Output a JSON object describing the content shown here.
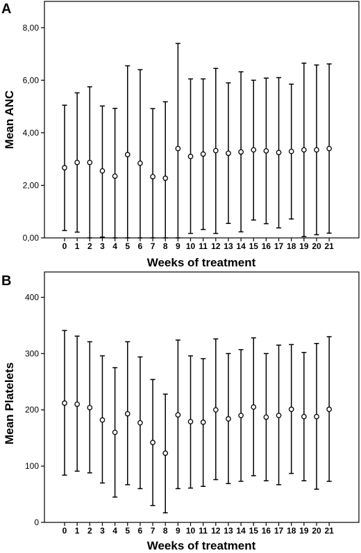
{
  "chart_data": [
    {
      "panel_label": "A",
      "type": "scatter",
      "representation": "mean with error bars",
      "xlabel": "Weeks of treatment",
      "ylabel": "Mean ANC",
      "categories": [
        "0",
        "1",
        "2",
        "3",
        "4",
        "5",
        "6",
        "7",
        "8",
        "9",
        "10",
        "11",
        "12",
        "13",
        "14",
        "15",
        "16",
        "17",
        "18",
        "19",
        "20",
        "21"
      ],
      "mean": [
        2.67,
        2.87,
        2.87,
        2.55,
        2.35,
        3.17,
        2.84,
        2.33,
        2.27,
        3.4,
        3.1,
        3.19,
        3.32,
        3.22,
        3.27,
        3.35,
        3.31,
        3.25,
        3.29,
        3.35,
        3.35,
        3.4
      ],
      "upper": [
        5.05,
        5.52,
        5.75,
        5.02,
        4.93,
        6.55,
        6.4,
        4.92,
        5.18,
        7.4,
        6.05,
        6.05,
        6.45,
        5.9,
        6.32,
        6.0,
        6.08,
        6.1,
        5.85,
        6.65,
        6.58,
        6.62
      ],
      "lower": [
        0.28,
        0.22,
        0.0,
        0.03,
        0.0,
        0.0,
        0.0,
        0.0,
        0.0,
        0.0,
        0.17,
        0.32,
        0.17,
        0.55,
        0.23,
        0.68,
        0.54,
        0.38,
        0.72,
        0.05,
        0.12,
        0.18
      ],
      "ylim": [
        0,
        9
      ],
      "yticks": [
        "0,00",
        "2,00",
        "4,00",
        "6,00",
        "8,00"
      ],
      "ytick_values": [
        0,
        2,
        4,
        6,
        8
      ],
      "grid": false
    },
    {
      "panel_label": "B",
      "type": "scatter",
      "representation": "mean with error bars",
      "xlabel": "Weeks of treatment",
      "ylabel": "Mean Platelets",
      "categories": [
        "0",
        "1",
        "2",
        "3",
        "4",
        "5",
        "6",
        "7",
        "8",
        "9",
        "10",
        "11",
        "12",
        "13",
        "14",
        "15",
        "16",
        "17",
        "18",
        "19",
        "20",
        "21"
      ],
      "mean": [
        212,
        210,
        204,
        182,
        160,
        193,
        177,
        142,
        123,
        191,
        179,
        178,
        200,
        184,
        190,
        205,
        187,
        190,
        201,
        188,
        188,
        201
      ],
      "upper": [
        341,
        331,
        321,
        296,
        275,
        321,
        294,
        254,
        228,
        324,
        296,
        291,
        326,
        300,
        307,
        328,
        300,
        315,
        316,
        302,
        318,
        330
      ],
      "lower": [
        84,
        91,
        88,
        70,
        45,
        67,
        60,
        30,
        17,
        60,
        61,
        64,
        76,
        69,
        73,
        83,
        74,
        67,
        87,
        74,
        59,
        73
      ],
      "ylim": [
        0,
        445
      ],
      "yticks": [
        "0",
        "100",
        "200",
        "300",
        "400"
      ],
      "ytick_values": [
        0,
        100,
        200,
        300,
        400
      ],
      "grid": false
    }
  ]
}
